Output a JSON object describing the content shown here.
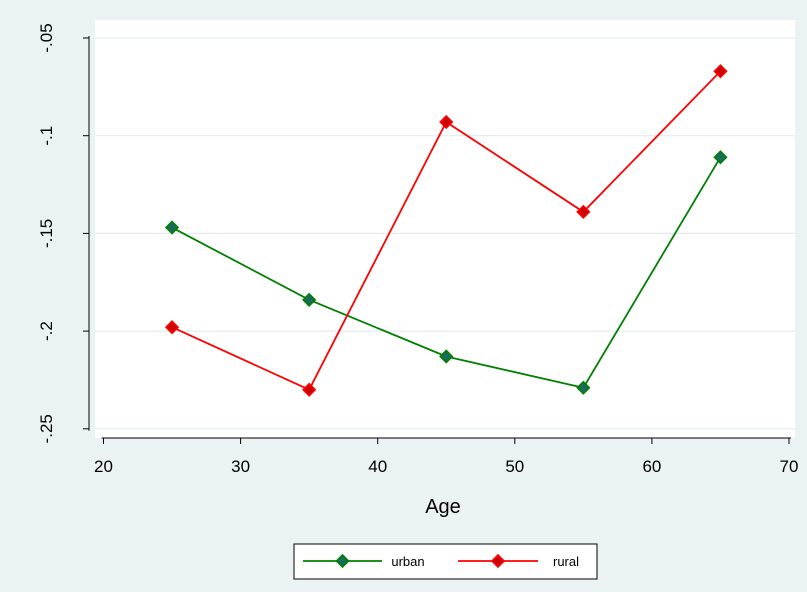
{
  "chart_data": {
    "type": "line",
    "title": "",
    "xlabel": "Age",
    "ylabel": "",
    "xlim": [
      20,
      70
    ],
    "ylim": [
      -0.25,
      -0.05
    ],
    "x_ticks": [
      20,
      30,
      40,
      50,
      60,
      70
    ],
    "x_tick_labels": [
      "20",
      "30",
      "40",
      "50",
      "60",
      "70"
    ],
    "y_ticks": [
      -0.25,
      -0.2,
      -0.15,
      -0.1,
      -0.05
    ],
    "y_tick_labels": [
      "-.25",
      "-.2",
      "-.15",
      "-.1",
      "-.05"
    ],
    "grid": true,
    "legend_position": "bottom",
    "x": [
      25,
      35,
      45,
      55,
      65
    ],
    "series": [
      {
        "name": "urban",
        "color": "#008000",
        "marker_fill": "#1a6b5e",
        "values": [
          -0.147,
          -0.184,
          -0.213,
          -0.229,
          -0.111
        ]
      },
      {
        "name": "rural",
        "color": "#ff0000",
        "marker_fill": "#cc0000",
        "values": [
          -0.198,
          -0.23,
          -0.093,
          -0.139,
          -0.067
        ]
      }
    ]
  }
}
